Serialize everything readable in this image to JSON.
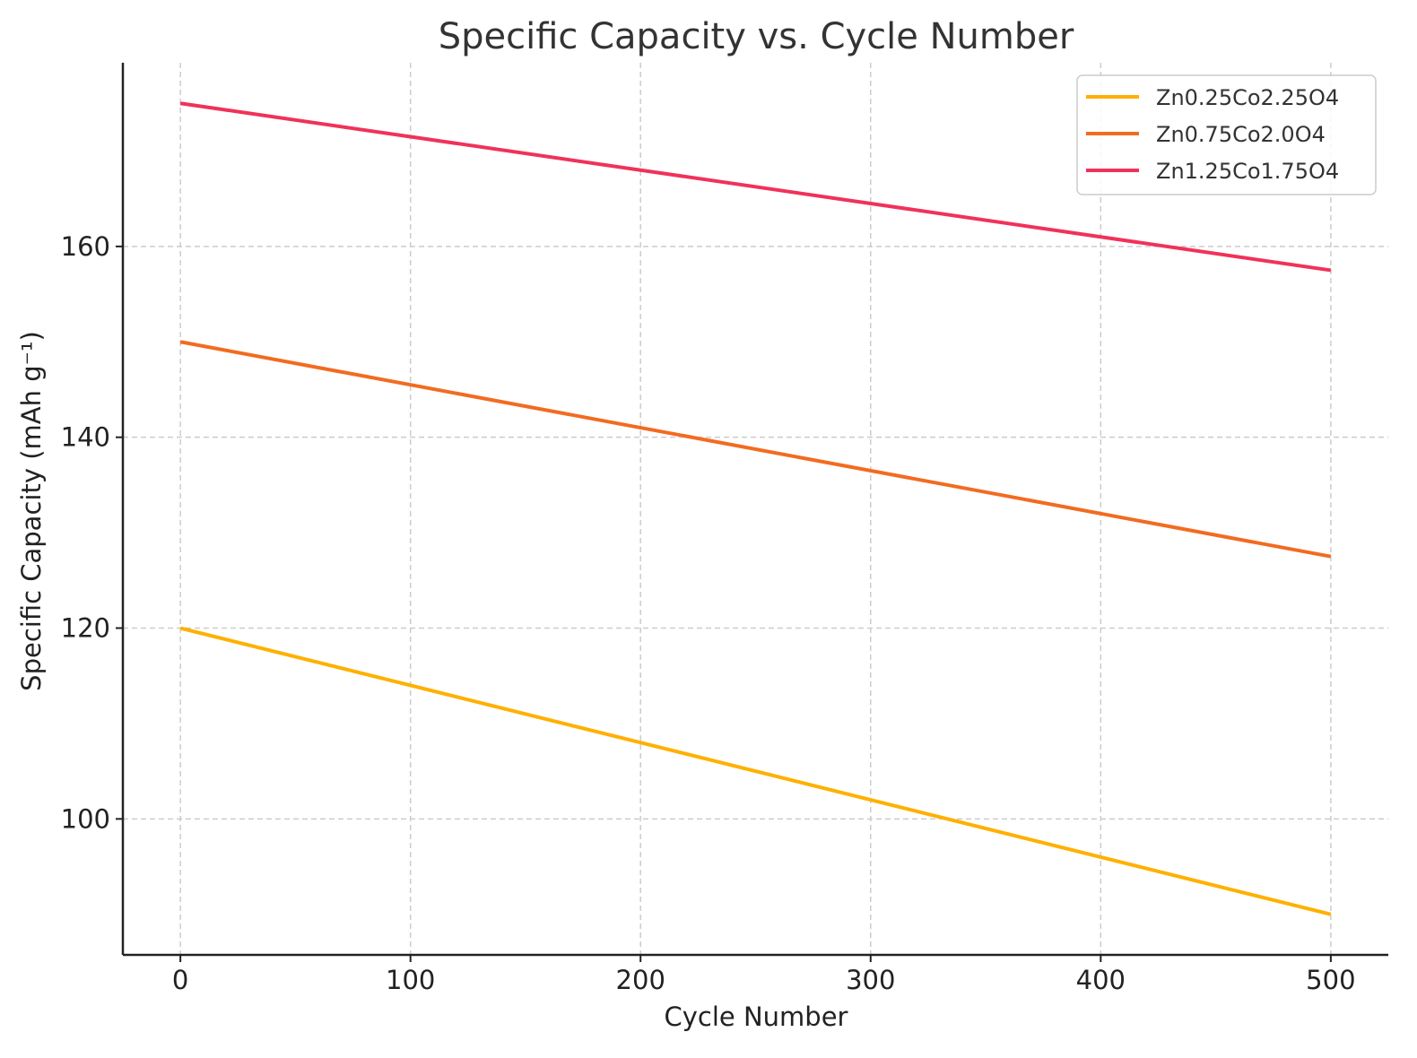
{
  "chart_data": {
    "type": "line",
    "title": "Specific Capacity vs. Cycle Number",
    "xlabel": "Cycle Number",
    "ylabel": "Specific Capacity (mAh g⁻¹)",
    "x": [
      0,
      500
    ],
    "xlim": [
      -25,
      525
    ],
    "ylim": [
      85.75,
      179.25
    ],
    "xticks": [
      0,
      100,
      200,
      300,
      400,
      500
    ],
    "xtick_labels": [
      "0",
      "100",
      "200",
      "300",
      "400",
      "500"
    ],
    "yticks": [
      100,
      120,
      140,
      160
    ],
    "ytick_labels": [
      "100",
      "120",
      "140",
      "160"
    ],
    "grid": true,
    "legend_position": "top-right",
    "series": [
      {
        "name": "Zn0.25Co2.25O4",
        "color": "#FFB000",
        "values": [
          120,
          90
        ]
      },
      {
        "name": "Zn0.75Co2.0O4",
        "color": "#F26B21",
        "values": [
          150,
          127.5
        ]
      },
      {
        "name": "Zn1.25Co1.75O4",
        "color": "#F0325A",
        "values": [
          175,
          157.5
        ]
      }
    ]
  }
}
